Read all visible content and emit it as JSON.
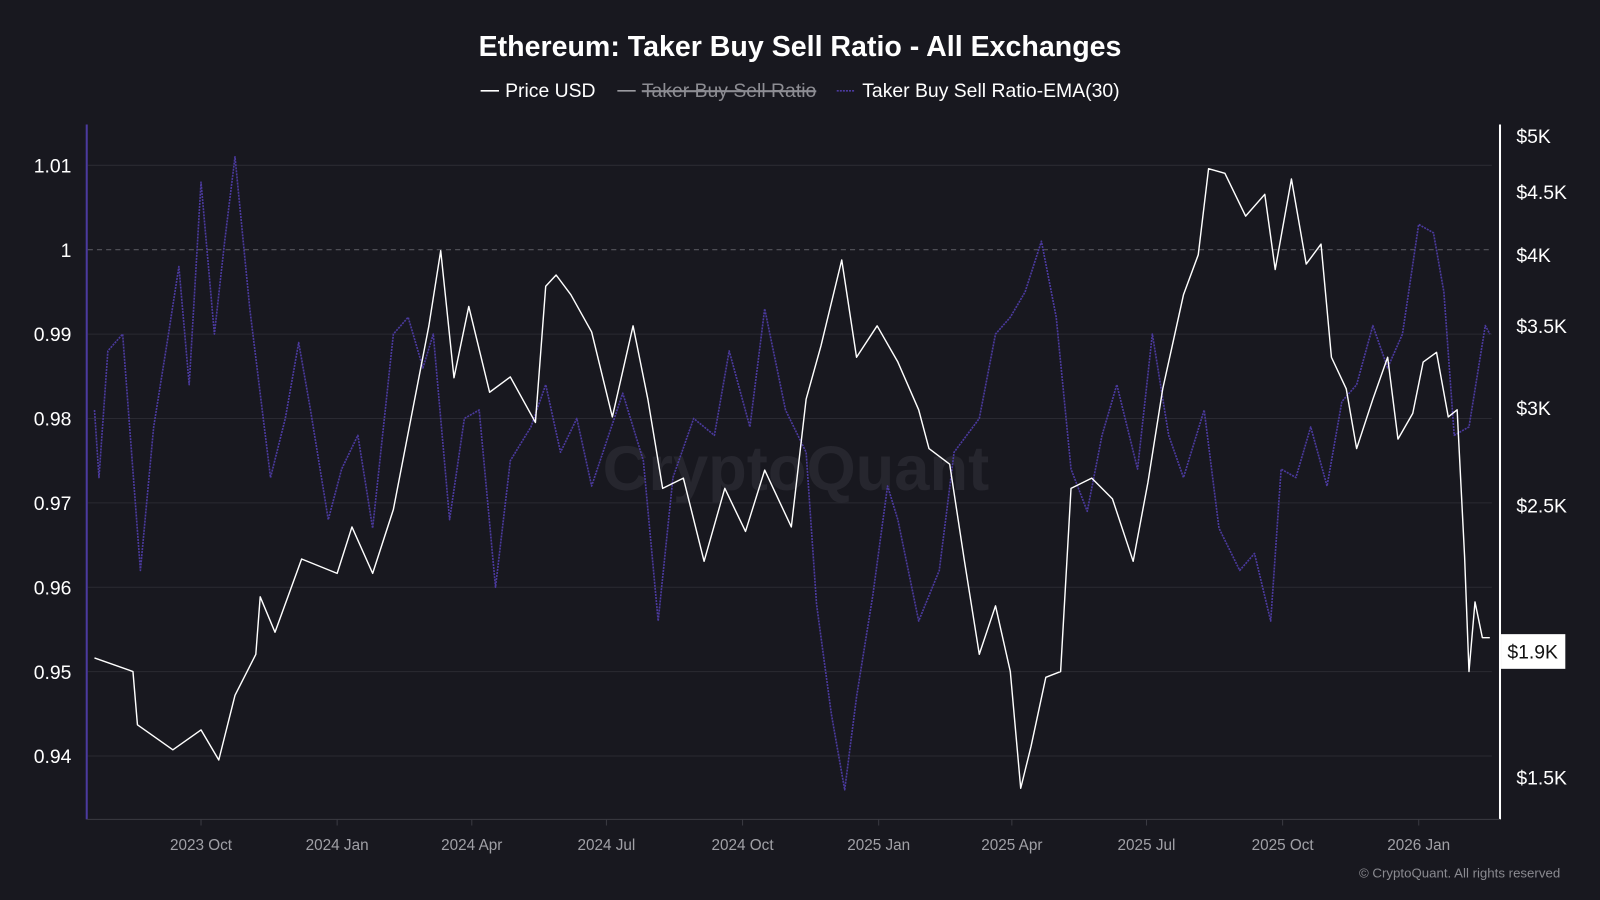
{
  "chart_data": {
    "type": "line",
    "title": "Ethereum: Taker Buy Sell Ratio - All Exchanges",
    "legend": {
      "placement": "top-center",
      "items": [
        {
          "label": "Price USD",
          "color": "#ffffff",
          "hidden": false
        },
        {
          "label": "Taker Buy Sell Ratio",
          "color": "#8a8a8a",
          "hidden": true
        },
        {
          "label": "Taker Buy Sell Ratio-EMA(30)",
          "color": "#4b3a9e",
          "hidden": false
        }
      ]
    },
    "x_ticks": [
      {
        "date": "2023-10-01",
        "label": "2023 Oct"
      },
      {
        "date": "2024-01-01",
        "label": "2024 Jan"
      },
      {
        "date": "2024-04-01",
        "label": "2024 Apr"
      },
      {
        "date": "2024-07-01",
        "label": "2024 Jul"
      },
      {
        "date": "2024-10-01",
        "label": "2024 Oct"
      },
      {
        "date": "2025-01-01",
        "label": "2025 Jan"
      },
      {
        "date": "2025-04-01",
        "label": "2025 Apr"
      },
      {
        "date": "2025-07-01",
        "label": "2025 Jul"
      },
      {
        "date": "2025-10-01",
        "label": "2025 Oct"
      },
      {
        "date": "2026-01-01",
        "label": "2026 Jan"
      }
    ],
    "left_axis": {
      "ticks": [
        {
          "value": 1.01,
          "label": "1.01"
        },
        {
          "value": 1.0,
          "label": "1"
        },
        {
          "value": 0.99,
          "label": "0.99"
        },
        {
          "value": 0.98,
          "label": "0.98"
        },
        {
          "value": 0.97,
          "label": "0.97"
        },
        {
          "value": 0.96,
          "label": "0.96"
        },
        {
          "value": 0.95,
          "label": "0.95"
        },
        {
          "value": 0.94,
          "label": "0.94"
        }
      ],
      "reference_line": 1.0
    },
    "right_axis": {
      "scale": "log",
      "ticks": [
        {
          "value": 5000,
          "label": "$5K"
        },
        {
          "value": 4500,
          "label": "$4.5K"
        },
        {
          "value": 4000,
          "label": "$4K"
        },
        {
          "value": 3500,
          "label": "$3.5K"
        },
        {
          "value": 3000,
          "label": "$3K"
        },
        {
          "value": 2500,
          "label": "$2.5K"
        },
        {
          "value": 1500,
          "label": "$1.5K"
        }
      ],
      "current": {
        "value": 1900,
        "label": "$1.9K"
      }
    },
    "series": [
      {
        "name": "Price USD",
        "axis": "right",
        "color": "#ffffff",
        "points": [
          [
            "2023-07-21",
            1877
          ],
          [
            "2023-08-16",
            1830
          ],
          [
            "2023-08-19",
            1656
          ],
          [
            "2023-09-12",
            1580
          ],
          [
            "2023-10-01",
            1640
          ],
          [
            "2023-10-13",
            1550
          ],
          [
            "2023-10-24",
            1750
          ],
          [
            "2023-11-07",
            1890
          ],
          [
            "2023-11-10",
            2105
          ],
          [
            "2023-11-20",
            1970
          ],
          [
            "2023-12-08",
            2260
          ],
          [
            "2024-01-01",
            2200
          ],
          [
            "2024-01-11",
            2400
          ],
          [
            "2024-01-25",
            2200
          ],
          [
            "2024-02-08",
            2480
          ],
          [
            "2024-02-21",
            2990
          ],
          [
            "2024-03-03",
            3500
          ],
          [
            "2024-03-11",
            4030
          ],
          [
            "2024-03-20",
            3175
          ],
          [
            "2024-03-30",
            3630
          ],
          [
            "2024-04-13",
            3090
          ],
          [
            "2024-04-27",
            3180
          ],
          [
            "2024-05-14",
            2920
          ],
          [
            "2024-05-21",
            3770
          ],
          [
            "2024-05-28",
            3850
          ],
          [
            "2024-06-07",
            3710
          ],
          [
            "2024-06-21",
            3460
          ],
          [
            "2024-07-05",
            2950
          ],
          [
            "2024-07-19",
            3500
          ],
          [
            "2024-07-29",
            3050
          ],
          [
            "2024-08-08",
            2580
          ],
          [
            "2024-08-22",
            2630
          ],
          [
            "2024-09-05",
            2250
          ],
          [
            "2024-09-19",
            2580
          ],
          [
            "2024-10-03",
            2380
          ],
          [
            "2024-10-16",
            2670
          ],
          [
            "2024-11-03",
            2400
          ],
          [
            "2024-11-13",
            3050
          ],
          [
            "2024-11-23",
            3370
          ],
          [
            "2024-12-07",
            3960
          ],
          [
            "2024-12-17",
            3300
          ],
          [
            "2024-12-31",
            3500
          ],
          [
            "2025-01-14",
            3270
          ],
          [
            "2025-01-28",
            2990
          ],
          [
            "2025-02-04",
            2780
          ],
          [
            "2025-02-18",
            2700
          ],
          [
            "2025-02-28",
            2250
          ],
          [
            "2025-03-10",
            1890
          ],
          [
            "2025-03-21",
            2070
          ],
          [
            "2025-03-31",
            1830
          ],
          [
            "2025-04-07",
            1470
          ],
          [
            "2025-04-14",
            1590
          ],
          [
            "2025-04-24",
            1810
          ],
          [
            "2025-05-04",
            1830
          ],
          [
            "2025-05-11",
            2580
          ],
          [
            "2025-05-25",
            2630
          ],
          [
            "2025-06-08",
            2530
          ],
          [
            "2025-06-22",
            2250
          ],
          [
            "2025-07-02",
            2610
          ],
          [
            "2025-07-12",
            3110
          ],
          [
            "2025-07-26",
            3710
          ],
          [
            "2025-08-05",
            4000
          ],
          [
            "2025-08-12",
            4700
          ],
          [
            "2025-08-23",
            4660
          ],
          [
            "2025-09-06",
            4300
          ],
          [
            "2025-09-19",
            4480
          ],
          [
            "2025-09-26",
            3890
          ],
          [
            "2025-10-07",
            4610
          ],
          [
            "2025-10-17",
            3930
          ],
          [
            "2025-10-27",
            4080
          ],
          [
            "2025-11-03",
            3300
          ],
          [
            "2025-11-13",
            3110
          ],
          [
            "2025-11-20",
            2780
          ],
          [
            "2025-12-01",
            3050
          ],
          [
            "2025-12-11",
            3300
          ],
          [
            "2025-12-18",
            2830
          ],
          [
            "2025-12-28",
            2970
          ],
          [
            "2026-01-04",
            3270
          ],
          [
            "2026-01-13",
            3330
          ],
          [
            "2026-01-21",
            2950
          ],
          [
            "2026-01-27",
            2990
          ],
          [
            "2026-02-01",
            2270
          ],
          [
            "2026-02-04",
            1830
          ],
          [
            "2026-02-08",
            2085
          ],
          [
            "2026-02-13",
            1950
          ],
          [
            "2026-02-18",
            1950
          ]
        ]
      },
      {
        "name": "Taker Buy Sell Ratio-EMA(30)",
        "axis": "left",
        "color": "#4b3a9e",
        "points": [
          [
            "2023-07-21",
            0.981
          ],
          [
            "2023-07-24",
            0.973
          ],
          [
            "2023-07-30",
            0.988
          ],
          [
            "2023-08-09",
            0.99
          ],
          [
            "2023-08-21",
            0.962
          ],
          [
            "2023-08-30",
            0.979
          ],
          [
            "2023-09-09",
            0.99
          ],
          [
            "2023-09-16",
            0.998
          ],
          [
            "2023-09-23",
            0.984
          ],
          [
            "2023-10-01",
            1.008
          ],
          [
            "2023-10-10",
            0.99
          ],
          [
            "2023-10-17",
            1.001
          ],
          [
            "2023-10-24",
            1.011
          ],
          [
            "2023-11-03",
            0.993
          ],
          [
            "2023-11-17",
            0.973
          ],
          [
            "2023-11-27",
            0.98
          ],
          [
            "2023-12-06",
            0.989
          ],
          [
            "2023-12-14",
            0.981
          ],
          [
            "2023-12-26",
            0.968
          ],
          [
            "2024-01-04",
            0.974
          ],
          [
            "2024-01-15",
            0.978
          ],
          [
            "2024-01-25",
            0.967
          ],
          [
            "2024-02-08",
            0.99
          ],
          [
            "2024-02-18",
            0.992
          ],
          [
            "2024-02-28",
            0.986
          ],
          [
            "2024-03-06",
            0.99
          ],
          [
            "2024-03-17",
            0.968
          ],
          [
            "2024-03-27",
            0.98
          ],
          [
            "2024-04-06",
            0.981
          ],
          [
            "2024-04-17",
            0.96
          ],
          [
            "2024-04-27",
            0.975
          ],
          [
            "2024-05-11",
            0.979
          ],
          [
            "2024-05-21",
            0.984
          ],
          [
            "2024-05-31",
            0.976
          ],
          [
            "2024-06-11",
            0.98
          ],
          [
            "2024-06-21",
            0.972
          ],
          [
            "2024-07-12",
            0.983
          ],
          [
            "2024-07-26",
            0.975
          ],
          [
            "2024-08-05",
            0.956
          ],
          [
            "2024-08-15",
            0.973
          ],
          [
            "2024-08-29",
            0.98
          ],
          [
            "2024-09-12",
            0.978
          ],
          [
            "2024-09-22",
            0.988
          ],
          [
            "2024-10-06",
            0.979
          ],
          [
            "2024-10-16",
            0.993
          ],
          [
            "2024-10-30",
            0.981
          ],
          [
            "2024-11-13",
            0.976
          ],
          [
            "2024-11-20",
            0.958
          ],
          [
            "2024-11-30",
            0.945
          ],
          [
            "2024-12-09",
            0.936
          ],
          [
            "2024-12-17",
            0.947
          ],
          [
            "2024-12-28",
            0.959
          ],
          [
            "2025-01-07",
            0.972
          ],
          [
            "2025-01-14",
            0.968
          ],
          [
            "2025-01-28",
            0.956
          ],
          [
            "2025-02-11",
            0.962
          ],
          [
            "2025-02-21",
            0.976
          ],
          [
            "2025-03-10",
            0.98
          ],
          [
            "2025-03-21",
            0.99
          ],
          [
            "2025-03-31",
            0.992
          ],
          [
            "2025-04-10",
            0.995
          ],
          [
            "2025-04-21",
            1.001
          ],
          [
            "2025-05-01",
            0.992
          ],
          [
            "2025-05-11",
            0.974
          ],
          [
            "2025-05-22",
            0.969
          ],
          [
            "2025-06-01",
            0.978
          ],
          [
            "2025-06-11",
            0.984
          ],
          [
            "2025-06-25",
            0.974
          ],
          [
            "2025-07-05",
            0.99
          ],
          [
            "2025-07-16",
            0.978
          ],
          [
            "2025-07-26",
            0.973
          ],
          [
            "2025-08-09",
            0.981
          ],
          [
            "2025-08-19",
            0.967
          ],
          [
            "2025-09-02",
            0.962
          ],
          [
            "2025-09-12",
            0.964
          ],
          [
            "2025-09-23",
            0.956
          ],
          [
            "2025-09-30",
            0.974
          ],
          [
            "2025-10-10",
            0.973
          ],
          [
            "2025-10-20",
            0.979
          ],
          [
            "2025-10-31",
            0.972
          ],
          [
            "2025-11-10",
            0.982
          ],
          [
            "2025-11-20",
            0.984
          ],
          [
            "2025-12-01",
            0.991
          ],
          [
            "2025-12-11",
            0.986
          ],
          [
            "2025-12-21",
            0.99
          ],
          [
            "2026-01-01",
            1.003
          ],
          [
            "2026-01-11",
            1.002
          ],
          [
            "2026-01-18",
            0.995
          ],
          [
            "2026-01-25",
            0.978
          ],
          [
            "2026-02-04",
            0.979
          ],
          [
            "2026-02-15",
            0.991
          ],
          [
            "2026-02-18",
            0.99
          ]
        ]
      }
    ],
    "watermark": "CryptoQuant",
    "credit": "© CryptoQuant. All rights reserved",
    "grid": true
  }
}
